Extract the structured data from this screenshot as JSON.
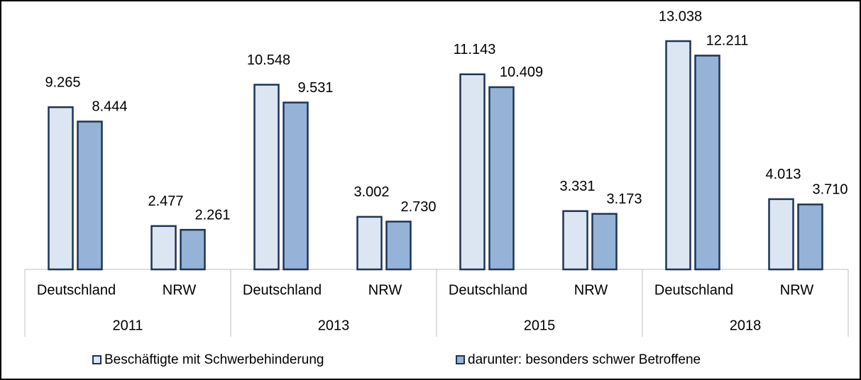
{
  "chart_data": {
    "type": "bar",
    "categories": [
      "Deutschland",
      "NRW",
      "Deutschland",
      "NRW",
      "Deutschland",
      "NRW",
      "Deutschland",
      "NRW"
    ],
    "groups": [
      "2011",
      "2013",
      "2015",
      "2018"
    ],
    "border_color": "#1f3556",
    "series": [
      {
        "name": "Beschäftigte mit Schwerbehinderung",
        "color": "#dce6f2",
        "values": [
          9265,
          2477,
          10548,
          3002,
          11143,
          3331,
          13038,
          4013
        ],
        "value_labels": [
          "9.265",
          "2.477",
          "10.548",
          "3.002",
          "11.143",
          "3.331",
          "13.038",
          "4.013"
        ]
      },
      {
        "name": "darunter: besonders schwer Betroffene",
        "color": "#95b3d7",
        "values": [
          8444,
          2261,
          9531,
          2730,
          10409,
          3173,
          12211,
          3710
        ],
        "value_labels": [
          "8.444",
          "2.261",
          "9.531",
          "2.730",
          "10.409",
          "3.173",
          "12.211",
          "3.710"
        ]
      }
    ]
  }
}
